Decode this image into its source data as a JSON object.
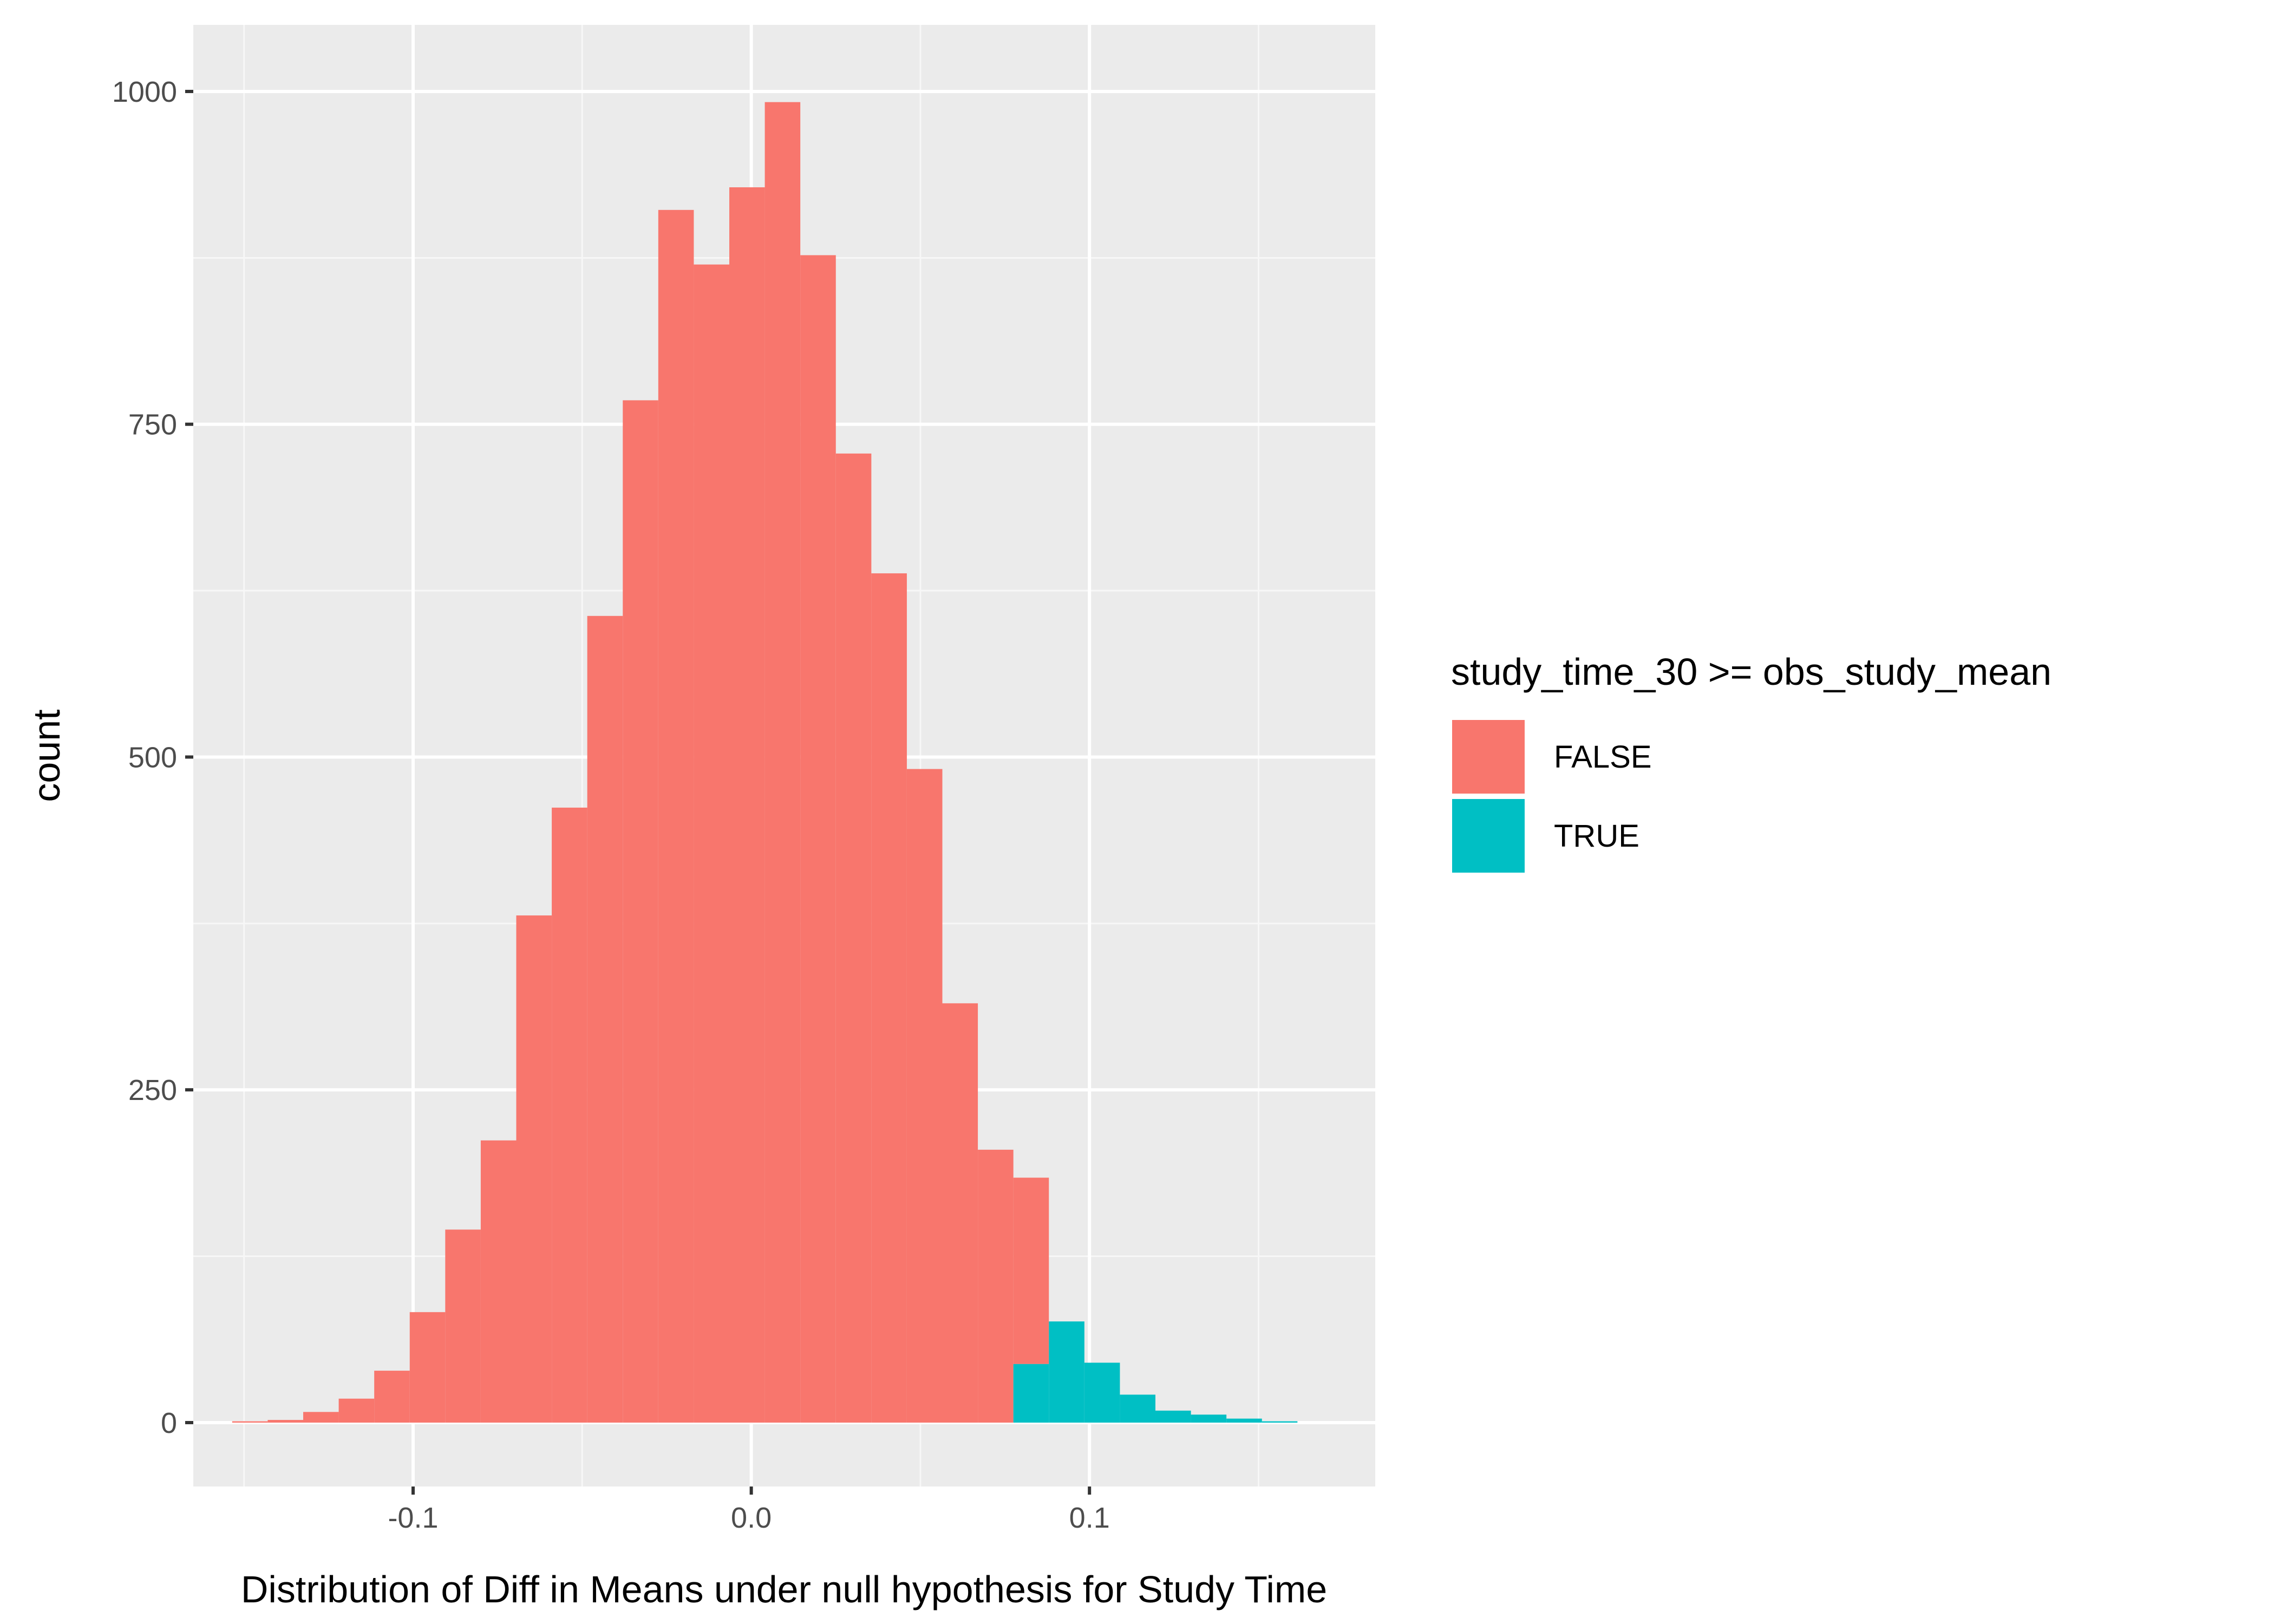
{
  "chart_data": {
    "type": "bar",
    "subtype": "histogram",
    "title": "",
    "xlabel": "Distribution of Diff in Means under null hypothesis for Study Time",
    "ylabel": "count",
    "xlim": [
      -0.165,
      0.1845
    ],
    "ylim": [
      -48,
      1050
    ],
    "x_ticks": [
      {
        "value": -0.1,
        "label": "-0.1"
      },
      {
        "value": 0.0,
        "label": "0.0"
      },
      {
        "value": 0.1,
        "label": "0.1"
      }
    ],
    "y_ticks": [
      {
        "value": 0,
        "label": "0"
      },
      {
        "value": 250,
        "label": "250"
      },
      {
        "value": 500,
        "label": "500"
      },
      {
        "value": 750,
        "label": "750"
      },
      {
        "value": 1000,
        "label": "1000"
      }
    ],
    "x_minor": [
      -0.15,
      -0.05,
      0.05,
      0.15
    ],
    "y_minor": [
      125,
      375,
      625,
      875
    ],
    "grid": true,
    "legend": {
      "title": "study_time_30 >= obs_study_mean",
      "placement": "right",
      "entries": [
        {
          "label": "FALSE",
          "color": "#F8766D"
        },
        {
          "label": "TRUE",
          "color": "#00BFC4"
        }
      ]
    },
    "bin_width": 0.0105,
    "series": [
      {
        "name": "FALSE",
        "color": "#F8766D",
        "bins": [
          {
            "x0": -0.1535,
            "x1": -0.143,
            "count": 1
          },
          {
            "x0": -0.143,
            "x1": -0.1325,
            "count": 2
          },
          {
            "x0": -0.1325,
            "x1": -0.122,
            "count": 8
          },
          {
            "x0": -0.122,
            "x1": -0.1115,
            "count": 18
          },
          {
            "x0": -0.1115,
            "x1": -0.101,
            "count": 39
          },
          {
            "x0": -0.101,
            "x1": -0.0905,
            "count": 83
          },
          {
            "x0": -0.0905,
            "x1": -0.08,
            "count": 145
          },
          {
            "x0": -0.08,
            "x1": -0.0695,
            "count": 212
          },
          {
            "x0": -0.0695,
            "x1": -0.059,
            "count": 381
          },
          {
            "x0": -0.059,
            "x1": -0.0485,
            "count": 462
          },
          {
            "x0": -0.0485,
            "x1": -0.038,
            "count": 606
          },
          {
            "x0": -0.038,
            "x1": -0.0275,
            "count": 768
          },
          {
            "x0": -0.0275,
            "x1": -0.017,
            "count": 911
          },
          {
            "x0": -0.017,
            "x1": -0.0065,
            "count": 870
          },
          {
            "x0": -0.0065,
            "x1": 0.004,
            "count": 928
          },
          {
            "x0": 0.004,
            "x1": 0.0145,
            "count": 992
          },
          {
            "x0": 0.0145,
            "x1": 0.025,
            "count": 877
          },
          {
            "x0": 0.025,
            "x1": 0.0355,
            "count": 728
          },
          {
            "x0": 0.0355,
            "x1": 0.046,
            "count": 638
          },
          {
            "x0": 0.046,
            "x1": 0.0565,
            "count": 491
          },
          {
            "x0": 0.0565,
            "x1": 0.067,
            "count": 315
          },
          {
            "x0": 0.067,
            "x1": 0.0775,
            "count": 205
          },
          {
            "x0": 0.0775,
            "x1": 0.088,
            "count": 140,
            "stack_base": 44
          },
          {
            "x0": 0.088,
            "x1": 0.0985,
            "count": 0
          }
        ]
      },
      {
        "name": "TRUE",
        "color": "#00BFC4",
        "bins": [
          {
            "x0": 0.0775,
            "x1": 0.088,
            "count": 44
          },
          {
            "x0": 0.088,
            "x1": 0.0985,
            "count": 76
          },
          {
            "x0": 0.0985,
            "x1": 0.109,
            "count": 45
          },
          {
            "x0": 0.109,
            "x1": 0.1195,
            "count": 21
          },
          {
            "x0": 0.1195,
            "x1": 0.13,
            "count": 9
          },
          {
            "x0": 0.13,
            "x1": 0.1405,
            "count": 6
          },
          {
            "x0": 0.1405,
            "x1": 0.151,
            "count": 3
          },
          {
            "x0": 0.151,
            "x1": 0.1615,
            "count": 1
          }
        ]
      }
    ]
  },
  "colors": {
    "panel_background": "#EBEBEB",
    "grid_major": "#FFFFFF",
    "grid_minor": "#F7F7F7",
    "tick_text": "#4D4D4D",
    "tick_mark": "#333333"
  }
}
